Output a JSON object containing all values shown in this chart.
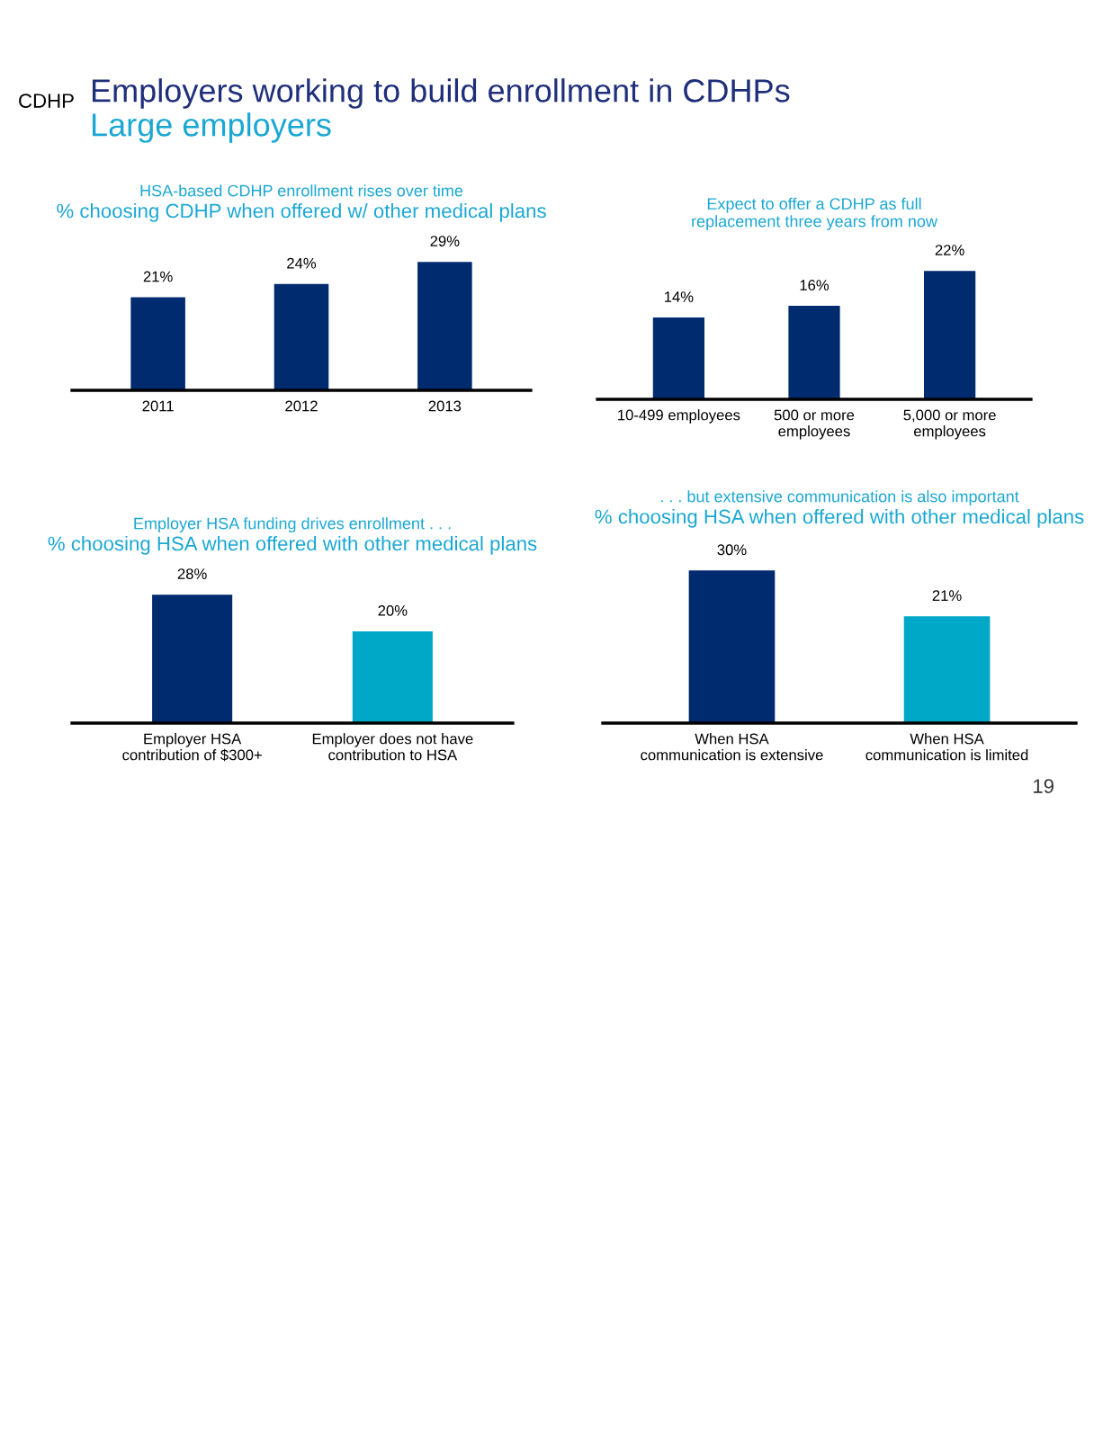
{
  "chart_data": [
    {
      "type": "bar",
      "title": "HSA-based CDHP enrollment rises over time",
      "subtitle": "% choosing CDHP when offered w/ other medical plans",
      "categories": [
        "2011",
        "2012",
        "2013"
      ],
      "values": [
        21,
        24,
        29
      ],
      "color": "#002b6f",
      "value_labels": [
        "21%",
        "24%",
        "29%"
      ],
      "annotations": [
        "CDHP",
        "Employers working to build enrollment in CDHPs",
        "Large employers"
      ]
    },
    {
      "type": "bar",
      "title": "Expect to offer a CDHP as full\nreplacement three years from now",
      "categories": [
        "10-499 employees",
        "500 or more\nemployees",
        "5,000 or more\nemployees"
      ],
      "values": [
        14,
        16,
        22
      ],
      "color": "#002b6f",
      "value_labels": [
        "14%",
        "16%",
        "22%"
      ]
    },
    {
      "type": "bar",
      "title": "Employer HSA funding drives enrollment . . .",
      "subtitle": "% choosing HSA when offered with other medical plans",
      "categories": [
        "Employer HSA\ncontribution of $300+",
        "Employer does not have\ncontribution to HSA"
      ],
      "values": [
        28,
        20
      ],
      "colors": [
        "#002b6f",
        "#00a8c8"
      ],
      "value_labels": [
        "28%",
        "20%"
      ]
    },
    {
      "type": "bar",
      "title": ". . . but extensive communication is also important",
      "subtitle": "% choosing HSA when offered with other medical plans",
      "categories": [
        "When HSA\ncommunication is extensive",
        "When HSA\ncommunication is limited"
      ],
      "values": [
        30,
        21
      ],
      "colors": [
        "#002b6f",
        "#00a8c8"
      ],
      "value_labels": [
        "30%",
        "21%"
      ],
      "annotations": [
        "19"
      ]
    }
  ]
}
